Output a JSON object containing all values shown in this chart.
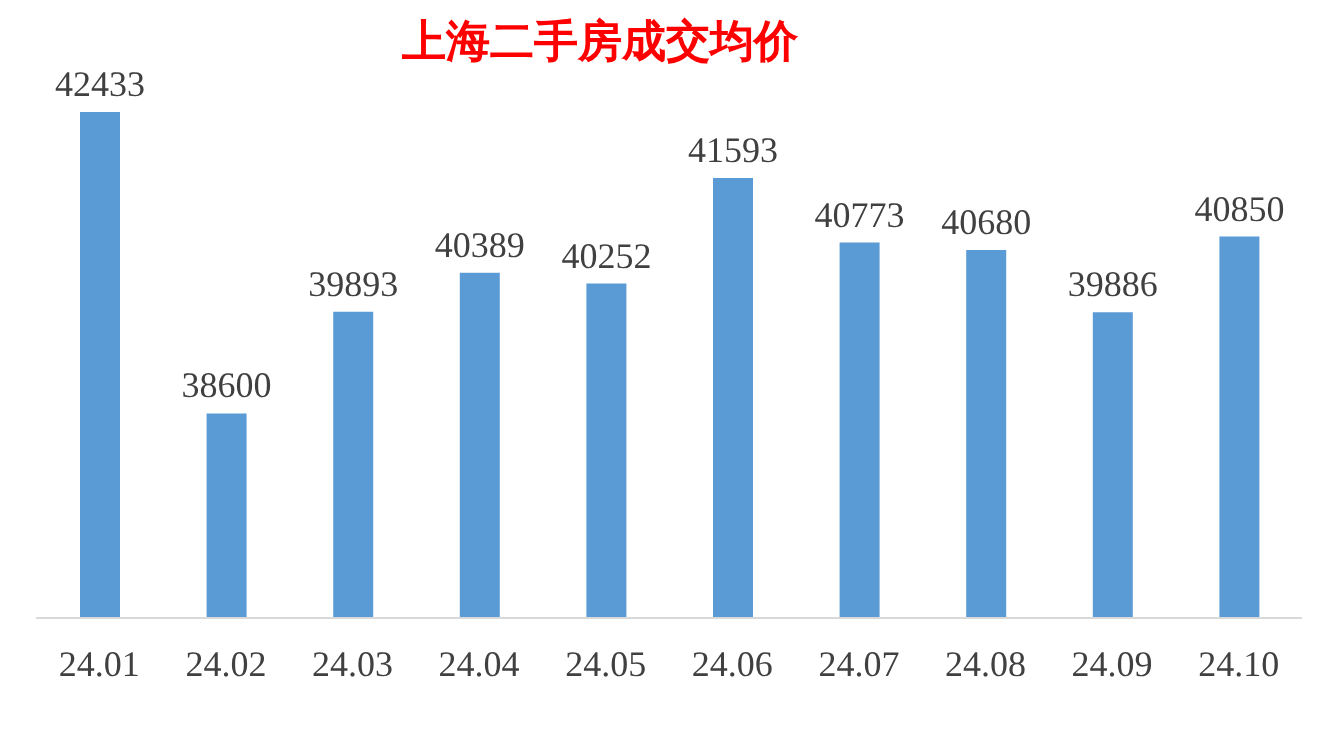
{
  "chart_data": {
    "type": "bar",
    "title": "上海二手房成交均价",
    "categories": [
      "24.01",
      "24.02",
      "24.03",
      "24.04",
      "24.05",
      "24.06",
      "24.07",
      "24.08",
      "24.09",
      "24.10"
    ],
    "values": [
      42433,
      38600,
      39893,
      40389,
      40252,
      41593,
      40773,
      40680,
      39886,
      40850
    ],
    "color": "#5b9bd5",
    "ylim": [
      36000,
      42433
    ],
    "data_labels": true
  }
}
